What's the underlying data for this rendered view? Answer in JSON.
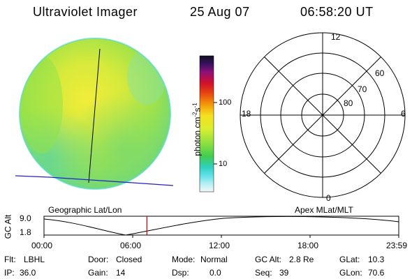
{
  "header": {
    "title": "Ultraviolet Imager",
    "date": "25 Aug 07",
    "time": "06:58:20 UT"
  },
  "colorbar": {
    "label": "photon cm",
    "label_exp1": "-2",
    "label_s": "s",
    "label_exp2": "-1",
    "ticks": [
      "100",
      "10"
    ]
  },
  "polar": {
    "labels": {
      "top": "12",
      "right": "6",
      "left": "18",
      "bottom": "0"
    },
    "lat_labels": [
      "60",
      "70",
      "80"
    ]
  },
  "map_labels": {
    "left": "Geographic Lat/Lon",
    "right": "Apex MLat/MLT"
  },
  "orbit": {
    "ylabel": "GC Alt",
    "y_ticks": [
      "9.0",
      "1.8"
    ],
    "x_ticks": [
      "00:00",
      "06:00",
      "12:00",
      "18:00",
      "23:59"
    ],
    "current_time_fraction": 0.29
  },
  "footer": {
    "filter_label": "Flt:",
    "filter_value": "LBHL",
    "door_label": "Door:",
    "door_value": "Closed",
    "mode_label": "Mode:",
    "mode_value": "Normal",
    "gcalt_label": "GC Alt:",
    "gcalt_value": "2.8 Re",
    "glat_label": "GLat:",
    "glat_value": "10.3",
    "ip_label": "IP:",
    "ip_value": "36.0",
    "gain_label": "Gain:",
    "gain_value": "14",
    "dsp_label": "Dsp:",
    "dsp_value": "0.0",
    "seq_label": "Seq:",
    "seq_value": "39",
    "glon_label": "GLon:",
    "glon_value": "70.6"
  },
  "colors": {
    "grid_line": "#000000",
    "geo_line": "#2222cc",
    "time_marker": "#cc0000"
  }
}
